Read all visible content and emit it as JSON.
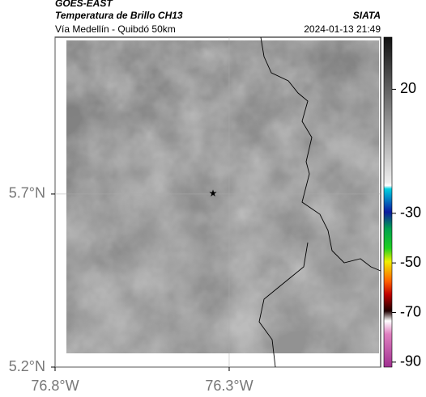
{
  "header": {
    "satellite": "GOES-EAST",
    "product": "Temperatura de Brillo CH13",
    "region": "Vía Medellín - Quibdó 50km",
    "source": "SIATA",
    "timestamp": "2024-01-13 21:49"
  },
  "map": {
    "lat_range": [
      5.2,
      6.153
    ],
    "lon_range": [
      -76.8,
      -75.865
    ],
    "lat_ticks": [
      {
        "value": 5.7,
        "label": "5.7°N"
      },
      {
        "value": 5.2,
        "label": "5.2°N"
      }
    ],
    "lon_ticks": [
      {
        "value": -76.8,
        "label": "76.8°W"
      },
      {
        "value": -76.3,
        "label": "76.3°W"
      }
    ]
  },
  "colorbar": {
    "range": [
      -92,
      41
    ],
    "ticks": [
      20,
      -30,
      -50,
      -70,
      -90
    ]
  }
}
